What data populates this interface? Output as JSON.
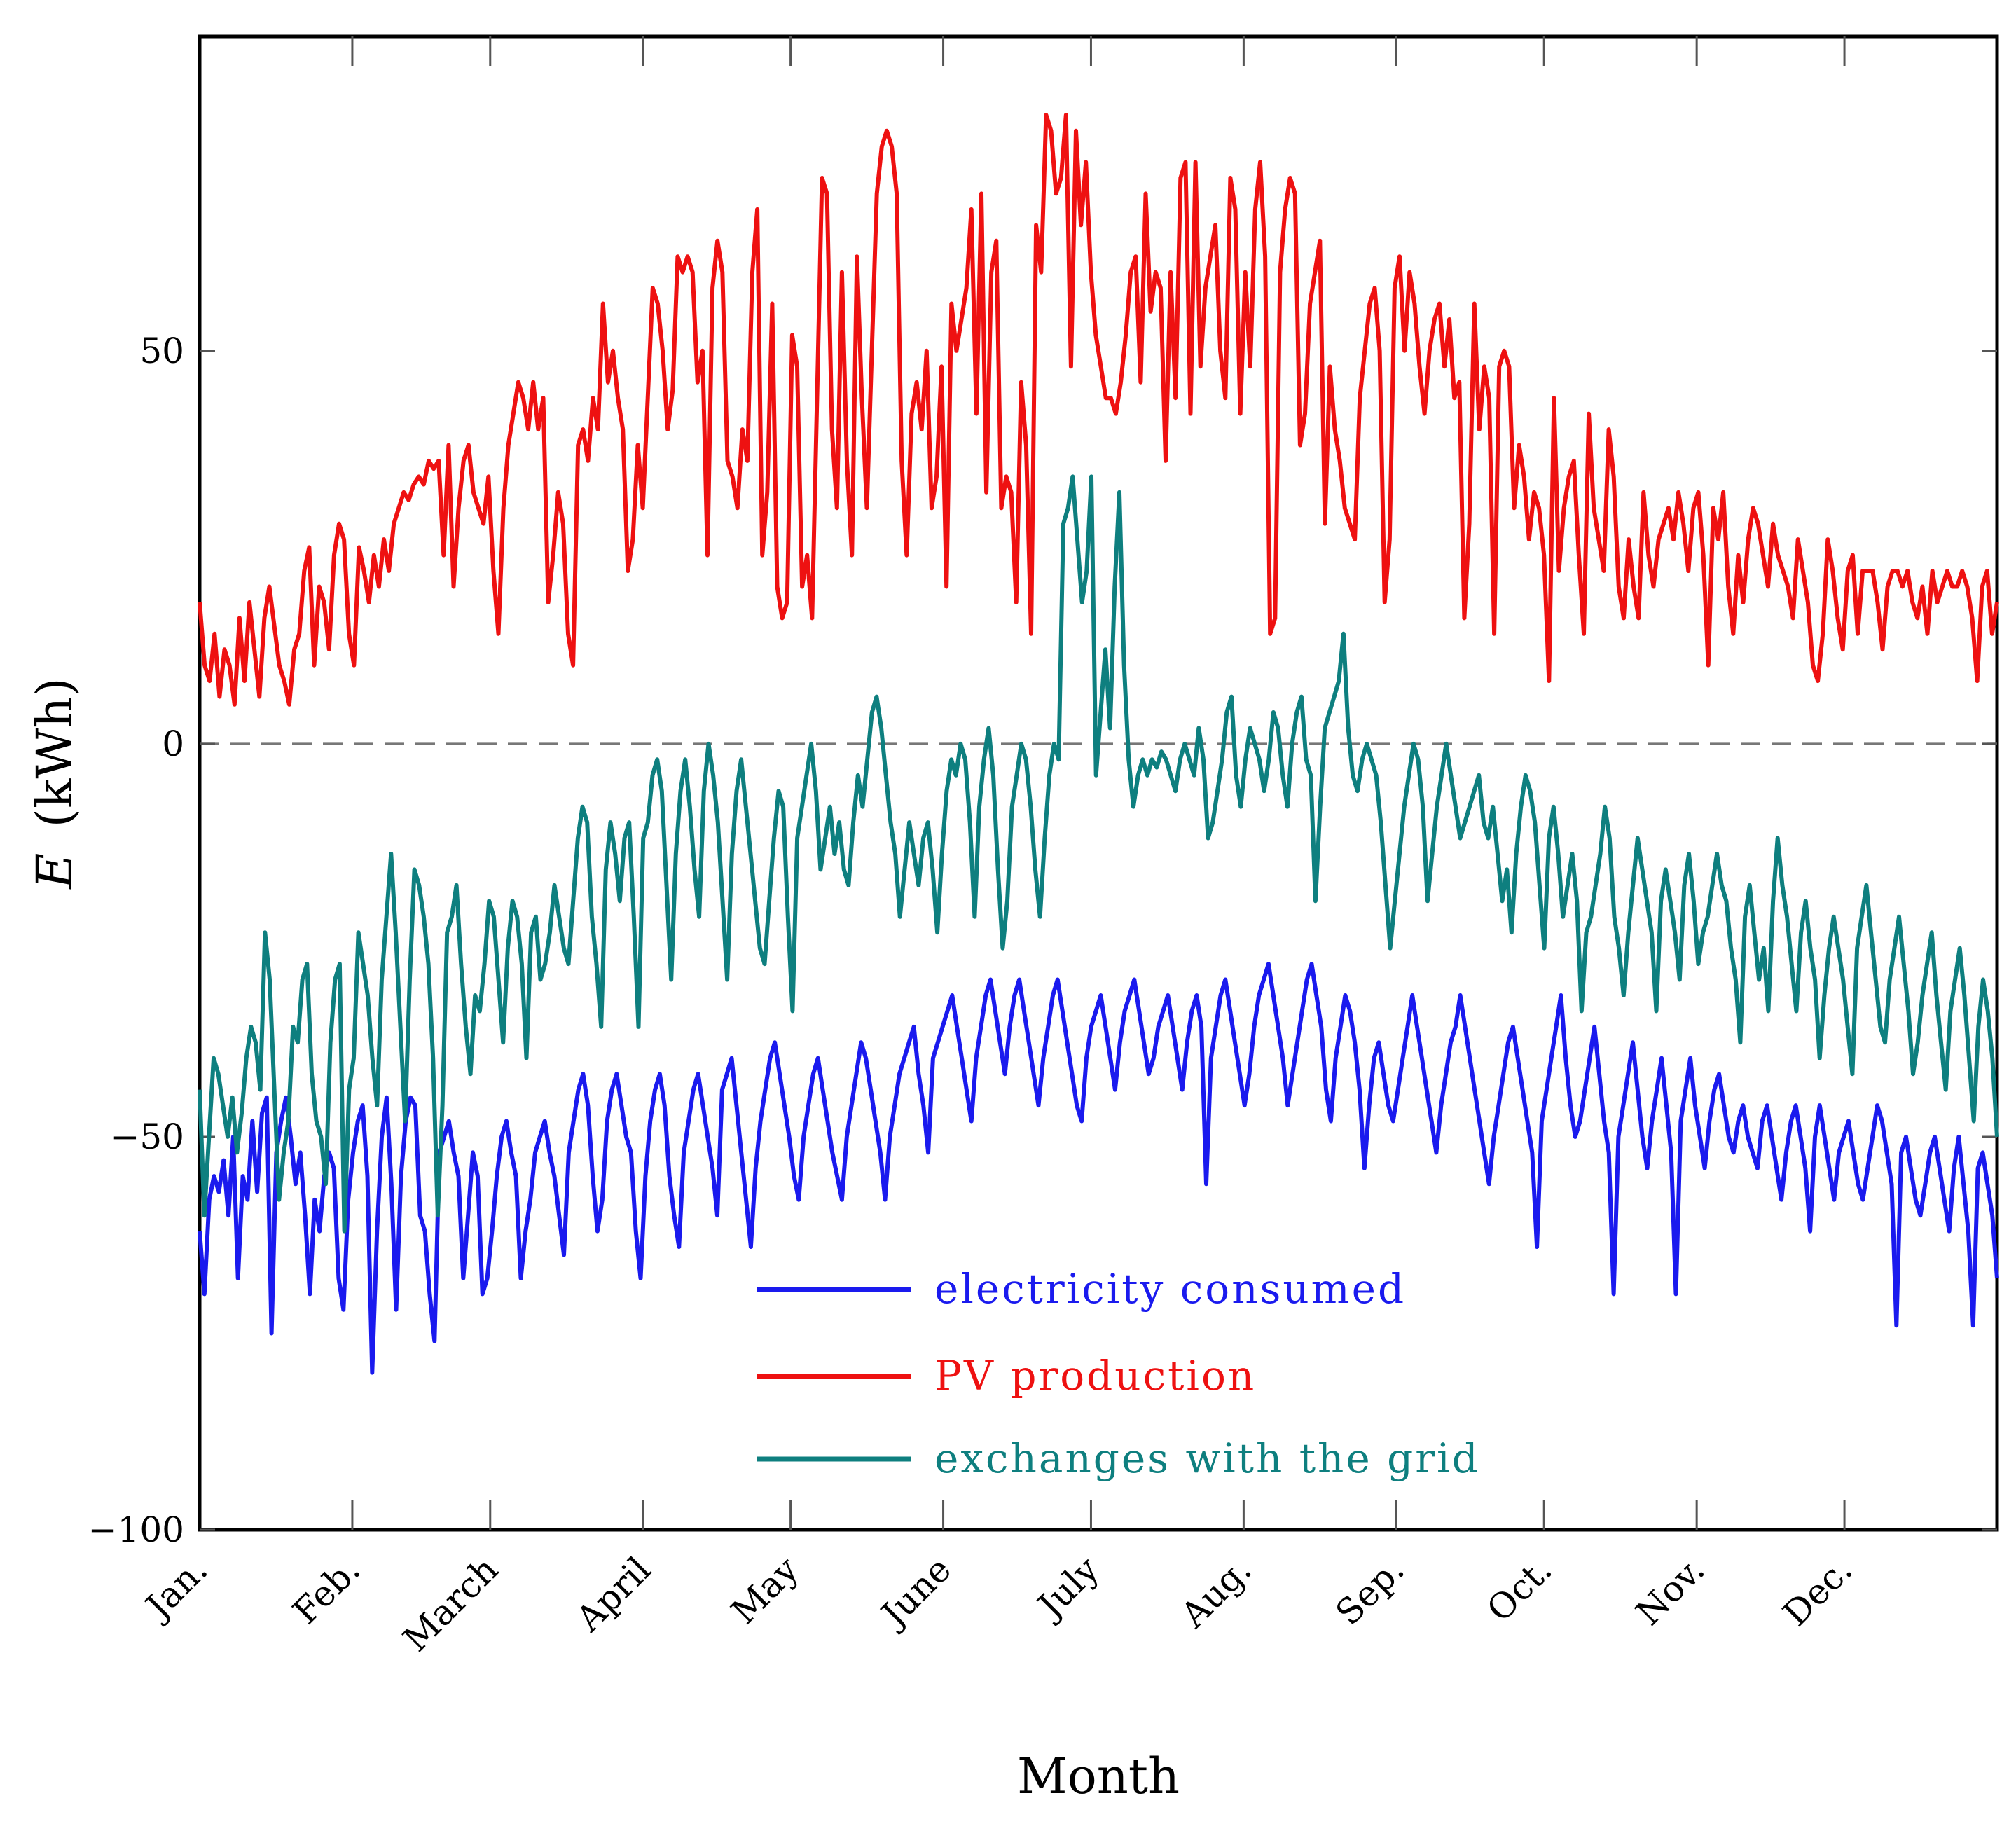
{
  "chart_data": {
    "type": "line",
    "title": "",
    "xlabel": "Month",
    "ylabel_symbol": "E",
    "ylabel_unit": "(kWh)",
    "ylim": [
      -100,
      90
    ],
    "xlim": [
      0,
      365
    ],
    "yticks": [
      -100,
      -50,
      0,
      50
    ],
    "ytick_labels": [
      "−100",
      "−50",
      "0",
      "50"
    ],
    "zero_line": "dashed",
    "grid": false,
    "month_labels": [
      "Jan.",
      "Feb.",
      "March",
      "April",
      "May",
      "June",
      "July",
      "Aug.",
      "Sep.",
      "Oct.",
      "Nov.",
      "Dec."
    ],
    "month_starts": [
      0,
      31,
      59,
      90,
      120,
      151,
      181,
      212,
      243,
      273,
      304,
      334
    ],
    "legend_position": "bottom-center",
    "colors": {
      "consumed": "#1a1aee",
      "pv": "#ee1111",
      "grid": "#0e7f7f"
    },
    "series": [
      {
        "name": "electricity consumed",
        "color": "#1a1aee",
        "values": [
          -62,
          -70,
          -58,
          -55,
          -57,
          -53,
          -60,
          -50,
          -68,
          -55,
          -58,
          -48,
          -57,
          -47,
          -45,
          -75,
          -52,
          -48,
          -45,
          -50,
          -56,
          -52,
          -60,
          -70,
          -58,
          -62,
          -55,
          -52,
          -54,
          -68,
          -72,
          -58,
          -52,
          -48,
          -46,
          -55,
          -80,
          -62,
          -50,
          -45,
          -56,
          -72,
          -55,
          -48,
          -45,
          -46,
          -60,
          -62,
          -70,
          -76,
          -52,
          -50,
          -48,
          -52,
          -55,
          -68,
          -60,
          -52,
          -55,
          -70,
          -68,
          -62,
          -55,
          -50,
          -48,
          -52,
          -55,
          -68,
          -62,
          -58,
          -52,
          -50,
          -48,
          -52,
          -55,
          -60,
          -65,
          -52,
          -48,
          -44,
          -42,
          -46,
          -55,
          -62,
          -58,
          -48,
          -44,
          -42,
          -46,
          -50,
          -52,
          -62,
          -68,
          -55,
          -48,
          -44,
          -42,
          -46,
          -55,
          -60,
          -64,
          -52,
          -48,
          -44,
          -42,
          -46,
          -50,
          -54,
          -60,
          -44,
          -42,
          -40,
          -46,
          -52,
          -58,
          -64,
          -54,
          -48,
          -44,
          -40,
          -38,
          -42,
          -46,
          -50,
          -55,
          -58,
          -50,
          -46,
          -42,
          -40,
          -44,
          -48,
          -52,
          -55,
          -58,
          -50,
          -46,
          -42,
          -38,
          -40,
          -44,
          -48,
          -52,
          -58,
          -50,
          -46,
          -42,
          -40,
          -38,
          -36,
          -42,
          -46,
          -52,
          -40,
          -38,
          -36,
          -34,
          -32,
          -36,
          -40,
          -44,
          -48,
          -40,
          -36,
          -32,
          -30,
          -34,
          -38,
          -42,
          -36,
          -32,
          -30,
          -34,
          -38,
          -42,
          -46,
          -40,
          -36,
          -32,
          -30,
          -34,
          -38,
          -42,
          -46,
          -48,
          -40,
          -36,
          -34,
          -32,
          -36,
          -40,
          -44,
          -38,
          -34,
          -32,
          -30,
          -34,
          -38,
          -42,
          -40,
          -36,
          -34,
          -32,
          -36,
          -40,
          -44,
          -38,
          -34,
          -32,
          -36,
          -56,
          -40,
          -36,
          -32,
          -30,
          -34,
          -38,
          -42,
          -46,
          -42,
          -36,
          -32,
          -30,
          -28,
          -32,
          -36,
          -40,
          -46,
          -42,
          -38,
          -34,
          -30,
          -28,
          -32,
          -36,
          -44,
          -48,
          -40,
          -36,
          -32,
          -34,
          -38,
          -44,
          -54,
          -46,
          -40,
          -38,
          -42,
          -46,
          -48,
          -44,
          -40,
          -36,
          -32,
          -36,
          -40,
          -44,
          -48,
          -52,
          -46,
          -42,
          -38,
          -36,
          -32,
          -36,
          -40,
          -44,
          -48,
          -52,
          -56,
          -50,
          -46,
          -42,
          -38,
          -36,
          -40,
          -44,
          -48,
          -52,
          -64,
          -48,
          -44,
          -40,
          -36,
          -32,
          -40,
          -46,
          -50,
          -48,
          -44,
          -40,
          -36,
          -42,
          -48,
          -52,
          -70,
          -50,
          -46,
          -42,
          -38,
          -44,
          -50,
          -54,
          -48,
          -44,
          -40,
          -46,
          -52,
          -70,
          -48,
          -44,
          -40,
          -46,
          -50,
          -54,
          -48,
          -44,
          -42,
          -46,
          -50,
          -52,
          -48,
          -46,
          -50,
          -52,
          -54,
          -48,
          -46,
          -50,
          -54,
          -58,
          -52,
          -48,
          -46,
          -50,
          -54,
          -62,
          -50,
          -46,
          -50,
          -54,
          -58,
          -52,
          -50,
          -48,
          -52,
          -56,
          -58,
          -54,
          -50,
          -46,
          -48,
          -52,
          -56,
          -74,
          -52,
          -50,
          -54,
          -58,
          -60,
          -56,
          -52,
          -50,
          -54,
          -58,
          -62,
          -54,
          -50,
          -56,
          -62,
          -74,
          -54,
          -52,
          -56,
          -60,
          -68
        ]
      },
      {
        "name": "PV production",
        "color": "#ee1111",
        "values": [
          18,
          10,
          8,
          14,
          6,
          12,
          10,
          5,
          16,
          8,
          18,
          12,
          6,
          16,
          20,
          15,
          10,
          8,
          5,
          12,
          14,
          22,
          25,
          10,
          20,
          18,
          12,
          24,
          28,
          26,
          14,
          10,
          25,
          22,
          18,
          24,
          20,
          26,
          22,
          28,
          30,
          32,
          31,
          33,
          34,
          33,
          36,
          35,
          36,
          24,
          38,
          20,
          30,
          36,
          38,
          32,
          30,
          28,
          34,
          22,
          14,
          30,
          38,
          42,
          46,
          44,
          40,
          46,
          40,
          44,
          18,
          24,
          32,
          28,
          14,
          10,
          38,
          40,
          36,
          44,
          40,
          56,
          46,
          50,
          44,
          40,
          22,
          26,
          38,
          30,
          44,
          58,
          56,
          50,
          40,
          45,
          62,
          60,
          62,
          60,
          46,
          50,
          24,
          58,
          64,
          60,
          36,
          34,
          30,
          40,
          36,
          60,
          68,
          24,
          32,
          56,
          20,
          16,
          18,
          52,
          48,
          20,
          24,
          16,
          44,
          72,
          70,
          40,
          30,
          60,
          36,
          24,
          62,
          44,
          30,
          50,
          70,
          76,
          78,
          76,
          70,
          36,
          24,
          42,
          46,
          40,
          50,
          30,
          34,
          48,
          20,
          56,
          50,
          54,
          58,
          68,
          42,
          70,
          32,
          60,
          64,
          30,
          34,
          32,
          18,
          46,
          38,
          14,
          66,
          60,
          80,
          78,
          70,
          72,
          80,
          48,
          78,
          66,
          74,
          60,
          52,
          48,
          44,
          44,
          42,
          46,
          52,
          60,
          62,
          46,
          70,
          55,
          60,
          58,
          36,
          60,
          44,
          72,
          74,
          42,
          74,
          48,
          58,
          62,
          66,
          50,
          44,
          72,
          68,
          42,
          60,
          48,
          68,
          74,
          62,
          14,
          16,
          60,
          68,
          72,
          70,
          38,
          42,
          56,
          60,
          64,
          28,
          48,
          40,
          36,
          30,
          28,
          26,
          44,
          50,
          56,
          58,
          50,
          18,
          26,
          58,
          62,
          50,
          60,
          56,
          48,
          42,
          50,
          54,
          56,
          48,
          54,
          44,
          46,
          16,
          28,
          56,
          40,
          48,
          44,
          14,
          48,
          50,
          48,
          30,
          38,
          34,
          26,
          32,
          30,
          24,
          8,
          44,
          22,
          30,
          34,
          36,
          24,
          14,
          42,
          30,
          26,
          22,
          40,
          34,
          20,
          16,
          26,
          20,
          16,
          32,
          24,
          20,
          26,
          28,
          30,
          26,
          32,
          28,
          22,
          30,
          32,
          24,
          10,
          30,
          26,
          32,
          20,
          14,
          24,
          18,
          26,
          30,
          28,
          24,
          20,
          28,
          24,
          22,
          20,
          16,
          26,
          22,
          18,
          10,
          8,
          14,
          26,
          22,
          16,
          12,
          22,
          24,
          14,
          22,
          22,
          22,
          18,
          12,
          20,
          22,
          22,
          20,
          22,
          18,
          16,
          20,
          14,
          22,
          18,
          20,
          22,
          20,
          20,
          22,
          20,
          16,
          8,
          20,
          22,
          14,
          18
        ]
      },
      {
        "name": "exchanges with the grid",
        "color": "#0e7f7f",
        "values": [
          -44,
          -60,
          -50,
          -40,
          -42,
          -46,
          -50,
          -45,
          -52,
          -47,
          -40,
          -36,
          -38,
          -44,
          -24,
          -30,
          -44,
          -58,
          -52,
          -48,
          -36,
          -38,
          -30,
          -28,
          -42,
          -48,
          -50,
          -56,
          -38,
          -30,
          -28,
          -62,
          -44,
          -40,
          -24,
          -28,
          -32,
          -40,
          -46,
          -30,
          -22,
          -14,
          -24,
          -36,
          -48,
          -30,
          -16,
          -18,
          -22,
          -28,
          -40,
          -60,
          -46,
          -24,
          -22,
          -18,
          -28,
          -36,
          -42,
          -32,
          -34,
          -28,
          -20,
          -22,
          -30,
          -38,
          -26,
          -20,
          -22,
          -28,
          -40,
          -24,
          -22,
          -30,
          -28,
          -24,
          -18,
          -22,
          -26,
          -28,
          -20,
          -12,
          -8,
          -10,
          -22,
          -28,
          -36,
          -16,
          -10,
          -14,
          -20,
          -12,
          -10,
          -22,
          -36,
          -12,
          -10,
          -4,
          -2,
          -6,
          -18,
          -30,
          -14,
          -6,
          -2,
          -8,
          -16,
          -22,
          -6,
          0,
          -4,
          -10,
          -20,
          -30,
          -14,
          -6,
          -2,
          -8,
          -14,
          -20,
          -26,
          -28,
          -20,
          -12,
          -6,
          -8,
          -22,
          -34,
          -12,
          -8,
          -4,
          0,
          -6,
          -16,
          -12,
          -8,
          -14,
          -10,
          -16,
          -18,
          -10,
          -4,
          -8,
          -2,
          4,
          6,
          2,
          -4,
          -10,
          -14,
          -22,
          -16,
          -10,
          -14,
          -18,
          -12,
          -10,
          -16,
          -24,
          -14,
          -6,
          -2,
          -4,
          0,
          -2,
          -10,
          -22,
          -8,
          -2,
          2,
          -4,
          -16,
          -26,
          -20,
          -8,
          -4,
          0,
          -2,
          -8,
          -16,
          -22,
          -12,
          -4,
          0,
          -2,
          28,
          30,
          34,
          26,
          18,
          22,
          34,
          -4,
          4,
          12,
          2,
          20,
          32,
          10,
          -2,
          -8,
          -4,
          -2,
          -4,
          -2,
          -3,
          -1,
          -2,
          -4,
          -6,
          -2,
          0,
          -2,
          -4,
          2,
          -2,
          -12,
          -10,
          -6,
          -2,
          4,
          6,
          -4,
          -8,
          -2,
          2,
          0,
          -2,
          -6,
          -2,
          4,
          2,
          -4,
          -8,
          0,
          4,
          6,
          -2,
          -4,
          -20,
          -8,
          2,
          4,
          6,
          8,
          14,
          2,
          -4,
          -6,
          -2,
          0,
          -2,
          -4,
          -10,
          -18,
          -26,
          -20,
          -14,
          -8,
          -4,
          0,
          -2,
          -8,
          -20,
          -14,
          -8,
          -4,
          0,
          -4,
          -8,
          -12,
          -10,
          -8,
          -6,
          -4,
          -10,
          -12,
          -8,
          -14,
          -20,
          -16,
          -24,
          -14,
          -8,
          -4,
          -6,
          -10,
          -18,
          -26,
          -12,
          -8,
          -14,
          -22,
          -18,
          -14,
          -20,
          -34,
          -24,
          -22,
          -18,
          -14,
          -8,
          -12,
          -22,
          -26,
          -32,
          -24,
          -18,
          -12,
          -16,
          -20,
          -24,
          -34,
          -20,
          -16,
          -20,
          -24,
          -30,
          -18,
          -14,
          -20,
          -28,
          -24,
          -22,
          -18,
          -14,
          -18,
          -20,
          -26,
          -30,
          -38,
          -22,
          -18,
          -24,
          -30,
          -26,
          -34,
          -20,
          -12,
          -18,
          -22,
          -28,
          -34,
          -24,
          -20,
          -26,
          -30,
          -40,
          -32,
          -26,
          -22,
          -26,
          -30,
          -36,
          -42,
          -26,
          -22,
          -18,
          -24,
          -30,
          -36,
          -38,
          -30,
          -26,
          -22,
          -28,
          -34,
          -42,
          -38,
          -32,
          -28,
          -24,
          -32,
          -38,
          -44,
          -34,
          -30,
          -26,
          -32,
          -40,
          -48,
          -36,
          -30,
          -34,
          -40,
          -50
        ]
      }
    ]
  }
}
